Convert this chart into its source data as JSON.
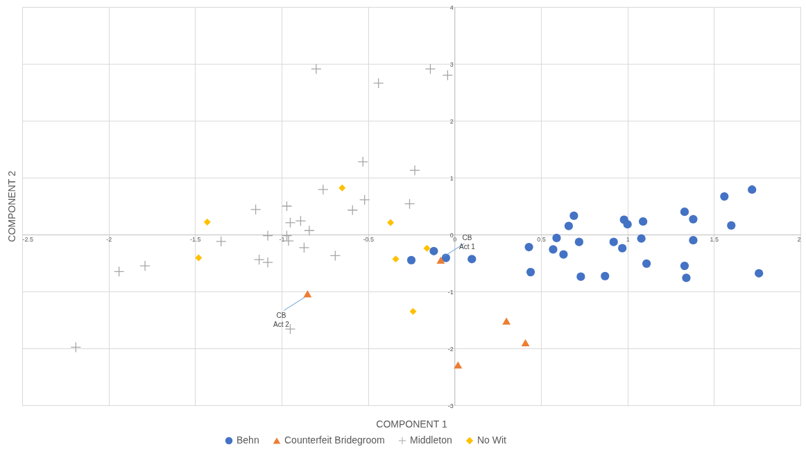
{
  "chart_data": {
    "type": "scatter",
    "xlabel": "COMPONENT 1",
    "ylabel": "COMPONENT 2",
    "xlim": [
      -2.5,
      2
    ],
    "xticks": [
      -2.5,
      -2,
      -1.5,
      -1,
      -0.5,
      0,
      0.5,
      1,
      1.5,
      2
    ],
    "ylim": [
      -3,
      4
    ],
    "yticks": [
      -3,
      -2,
      -1,
      0,
      1,
      2,
      3,
      4
    ],
    "grid": true,
    "legend": "bottom",
    "series": [
      {
        "name": "Behn",
        "color": "#4472c4",
        "marker": "circle",
        "x": [
          -0.25,
          -0.12,
          -0.05,
          0.1,
          0.43,
          0.44,
          0.57,
          0.59,
          0.63,
          0.66,
          0.69,
          0.72,
          0.73,
          0.87,
          0.92,
          0.97,
          0.98,
          1.0,
          1.08,
          1.09,
          1.11,
          1.33,
          1.33,
          1.34,
          1.38,
          1.38,
          1.56,
          1.6,
          1.72,
          1.76
        ],
        "values": [
          -0.45,
          -0.29,
          -0.41,
          -0.43,
          -0.22,
          -0.66,
          -0.26,
          -0.06,
          -0.35,
          0.15,
          0.33,
          -0.13,
          -0.74,
          -0.73,
          -0.13,
          -0.24,
          0.26,
          0.18,
          -0.07,
          0.23,
          -0.51,
          0.4,
          -0.55,
          -0.76,
          0.27,
          -0.1,
          0.67,
          0.16,
          0.79,
          -0.68
        ]
      },
      {
        "name": "Counterfeit Bridegroom",
        "color": "#ed7d31",
        "marker": "triangle",
        "x": [
          -0.85,
          -0.08,
          0.3,
          0.41,
          0.02
        ],
        "values": [
          -1.04,
          -0.45,
          -1.52,
          -1.9,
          -2.29
        ]
      },
      {
        "name": "Middleton",
        "color": "#a5a5a5",
        "marker": "cross",
        "x": [
          -0.8,
          -0.44,
          -0.14,
          -0.04,
          -0.53,
          -0.23,
          -0.76,
          -0.52,
          -0.59,
          -0.26,
          -1.15,
          -0.97,
          -0.95,
          -0.89,
          -0.84,
          -1.08,
          -0.97,
          -0.96,
          -1.35,
          -0.87,
          -1.13,
          -1.08,
          -0.69,
          -1.79,
          -1.94,
          -0.95,
          -2.19
        ],
        "values": [
          2.91,
          2.66,
          2.91,
          2.8,
          1.28,
          1.13,
          0.79,
          0.61,
          0.43,
          0.54,
          0.44,
          0.5,
          0.21,
          0.24,
          0.07,
          -0.02,
          -0.02,
          -0.11,
          -0.12,
          -0.23,
          -0.44,
          -0.49,
          -0.37,
          -0.55,
          -0.65,
          -1.66,
          -1.98
        ]
      },
      {
        "name": "No Wit",
        "color": "#ffc000",
        "marker": "diamond",
        "x": [
          -1.43,
          -1.48,
          -0.65,
          -0.37,
          -0.34,
          -0.16,
          -0.24
        ],
        "values": [
          0.22,
          -0.41,
          0.82,
          0.21,
          -0.43,
          -0.24,
          -1.35
        ]
      }
    ],
    "annotations": [
      {
        "text": "CB\nAct 1",
        "x": -0.08,
        "y": -0.45
      },
      {
        "text": "CB\nAct 2",
        "x": -0.85,
        "y": -1.04
      }
    ]
  }
}
